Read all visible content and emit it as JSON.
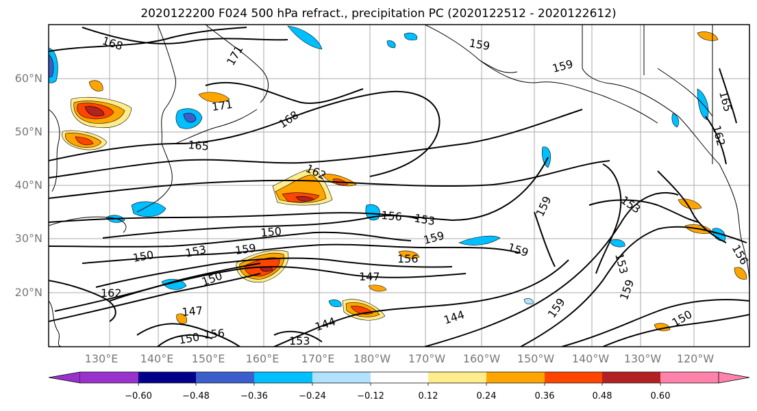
{
  "title": "2020122200 F024 500 hPa refract., precipitation PC (2020122512 - 2020122612)",
  "lat_labels": [
    "60°N",
    "50°N",
    "40°N",
    "30°N",
    "20°N"
  ],
  "lon_labels": [
    "130°E",
    "140°E",
    "150°E",
    "160°E",
    "170°E",
    "180°W",
    "170°W",
    "160°W",
    "150°W",
    "140°W",
    "130°W",
    "120°W"
  ],
  "colorbar": {
    "ticks": [
      "−0.60",
      "−0.48",
      "−0.36",
      "−0.24",
      "−0.12",
      "0.12",
      "0.24",
      "0.36",
      "0.48",
      "0.60"
    ],
    "colors": [
      "#9932cc",
      "#00008b",
      "#3a5fcd",
      "#00bfff",
      "#b0e2ff",
      "#ffffff",
      "#ffec8b",
      "#ffa500",
      "#ff4500",
      "#b22222",
      "#ff82ab"
    ]
  },
  "contour_labels": [
    "168",
    "171",
    "171",
    "168",
    "165",
    "162",
    "159",
    "159",
    "165",
    "162",
    "156",
    "153",
    "150",
    "159",
    "153",
    "159",
    "150",
    "153",
    "156",
    "159",
    "147",
    "150",
    "162",
    "147",
    "144",
    "144",
    "156",
    "153",
    "150",
    "159",
    "159",
    "156",
    "153",
    "150",
    "159"
  ]
}
